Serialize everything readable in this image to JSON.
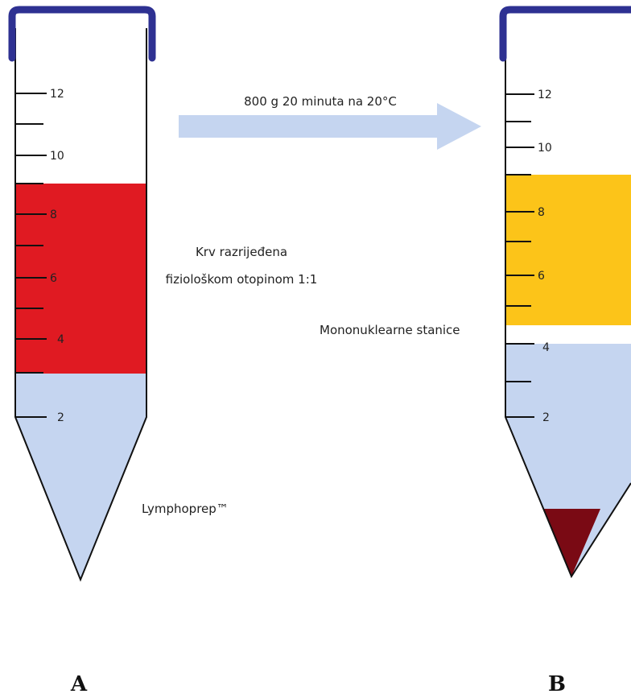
{
  "colors": {
    "tube_outline": "#111111",
    "cap": "#2e3192",
    "blood_diluted": "#e01a22",
    "lymphoprep": "#c5d5f0",
    "plasma": "#fcc419",
    "mononuclear_band": "#ffffff",
    "red_cells_pellet": "#7a0a14",
    "arrow": "#c5d5f0"
  },
  "process": {
    "centrifuge_label": "800 g 20 minuta na 20°C"
  },
  "tube_a": {
    "panel_label": "A",
    "tick_labels": [
      "12",
      "10",
      "8",
      "6",
      "4",
      "2"
    ],
    "layer_labels": {
      "blood_line1": "Krv razrijeđena",
      "blood_line2": "fiziološkom otopinom 1:1",
      "lymphoprep": "Lymphoprep™"
    }
  },
  "tube_b": {
    "panel_label": "B",
    "tick_labels": [
      "12",
      "10",
      "8",
      "6",
      "4",
      "2"
    ],
    "layer_labels": {
      "mononuclear": "Mononuklearne stanice"
    }
  }
}
